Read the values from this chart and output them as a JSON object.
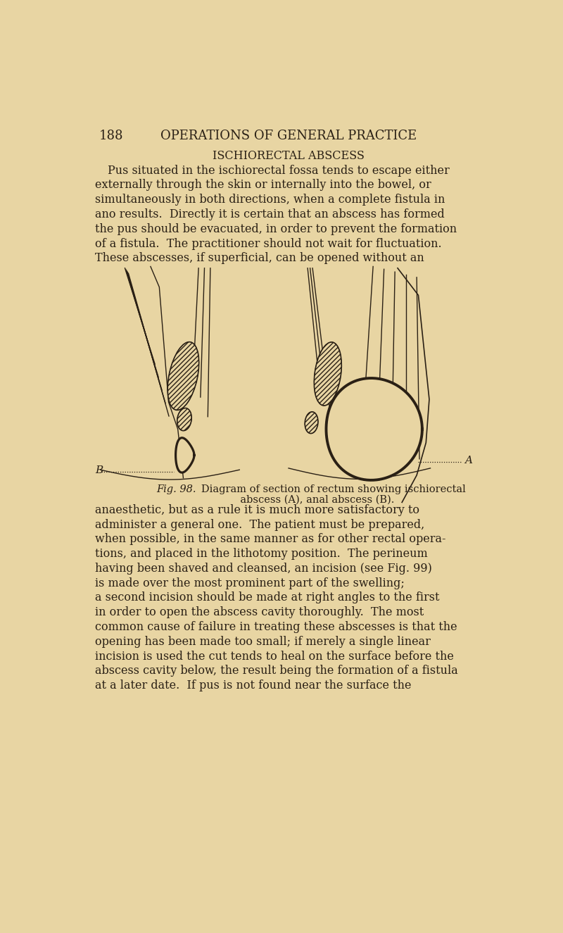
{
  "background_color": "#e8d5a3",
  "text_color": "#2a2015",
  "page_number": "188",
  "page_header": "OPERATIONS OF GENERAL PRACTICE",
  "section_title": "ISCHIORECTAL ABSCESS",
  "label_A": "A",
  "label_B": "B",
  "para1_lines": [
    "Pus situated in the ischiorectal fossa tends to escape either",
    "externally through the skin or internally into the bowel, or",
    "simultaneously in both directions, when a complete fistula in",
    "ano results.  Directly it is certain that an abscess has formed",
    "the pus should be evacuated, in order to prevent the formation",
    "of a fistula.  The practitioner should not wait for fluctuation.",
    "These abscesses, if superficial, can be opened without an"
  ],
  "para2_lines": [
    "anaesthetic, but as a rule it is much more satisfactory to",
    "administer a general one.  The patient must be prepared,",
    "when possible, in the same manner as for other rectal opera-",
    "tions, and placed in the lithotomy position.  The perineum",
    "having been shaved and cleansed, an incision (see Fig. 99)",
    "is made over the most prominent part of the swelling;",
    "a second incision should be made at right angles to the first",
    "in order to open the abscess cavity thoroughly.  The most",
    "common cause of failure in treating these abscesses is that the",
    "opening has been made too small; if merely a single linear",
    "incision is used the cut tends to heal on the surface before the",
    "abscess cavity below, the result being the formation of a fistula",
    "at a later date.  If pus is not found near the surface the"
  ],
  "caption_italic": "Fig. 98.",
  "caption_normal": "   Diagram of section of rectum showing ischiorectal",
  "caption_normal2": "abscess (A), anal abscess (B)."
}
